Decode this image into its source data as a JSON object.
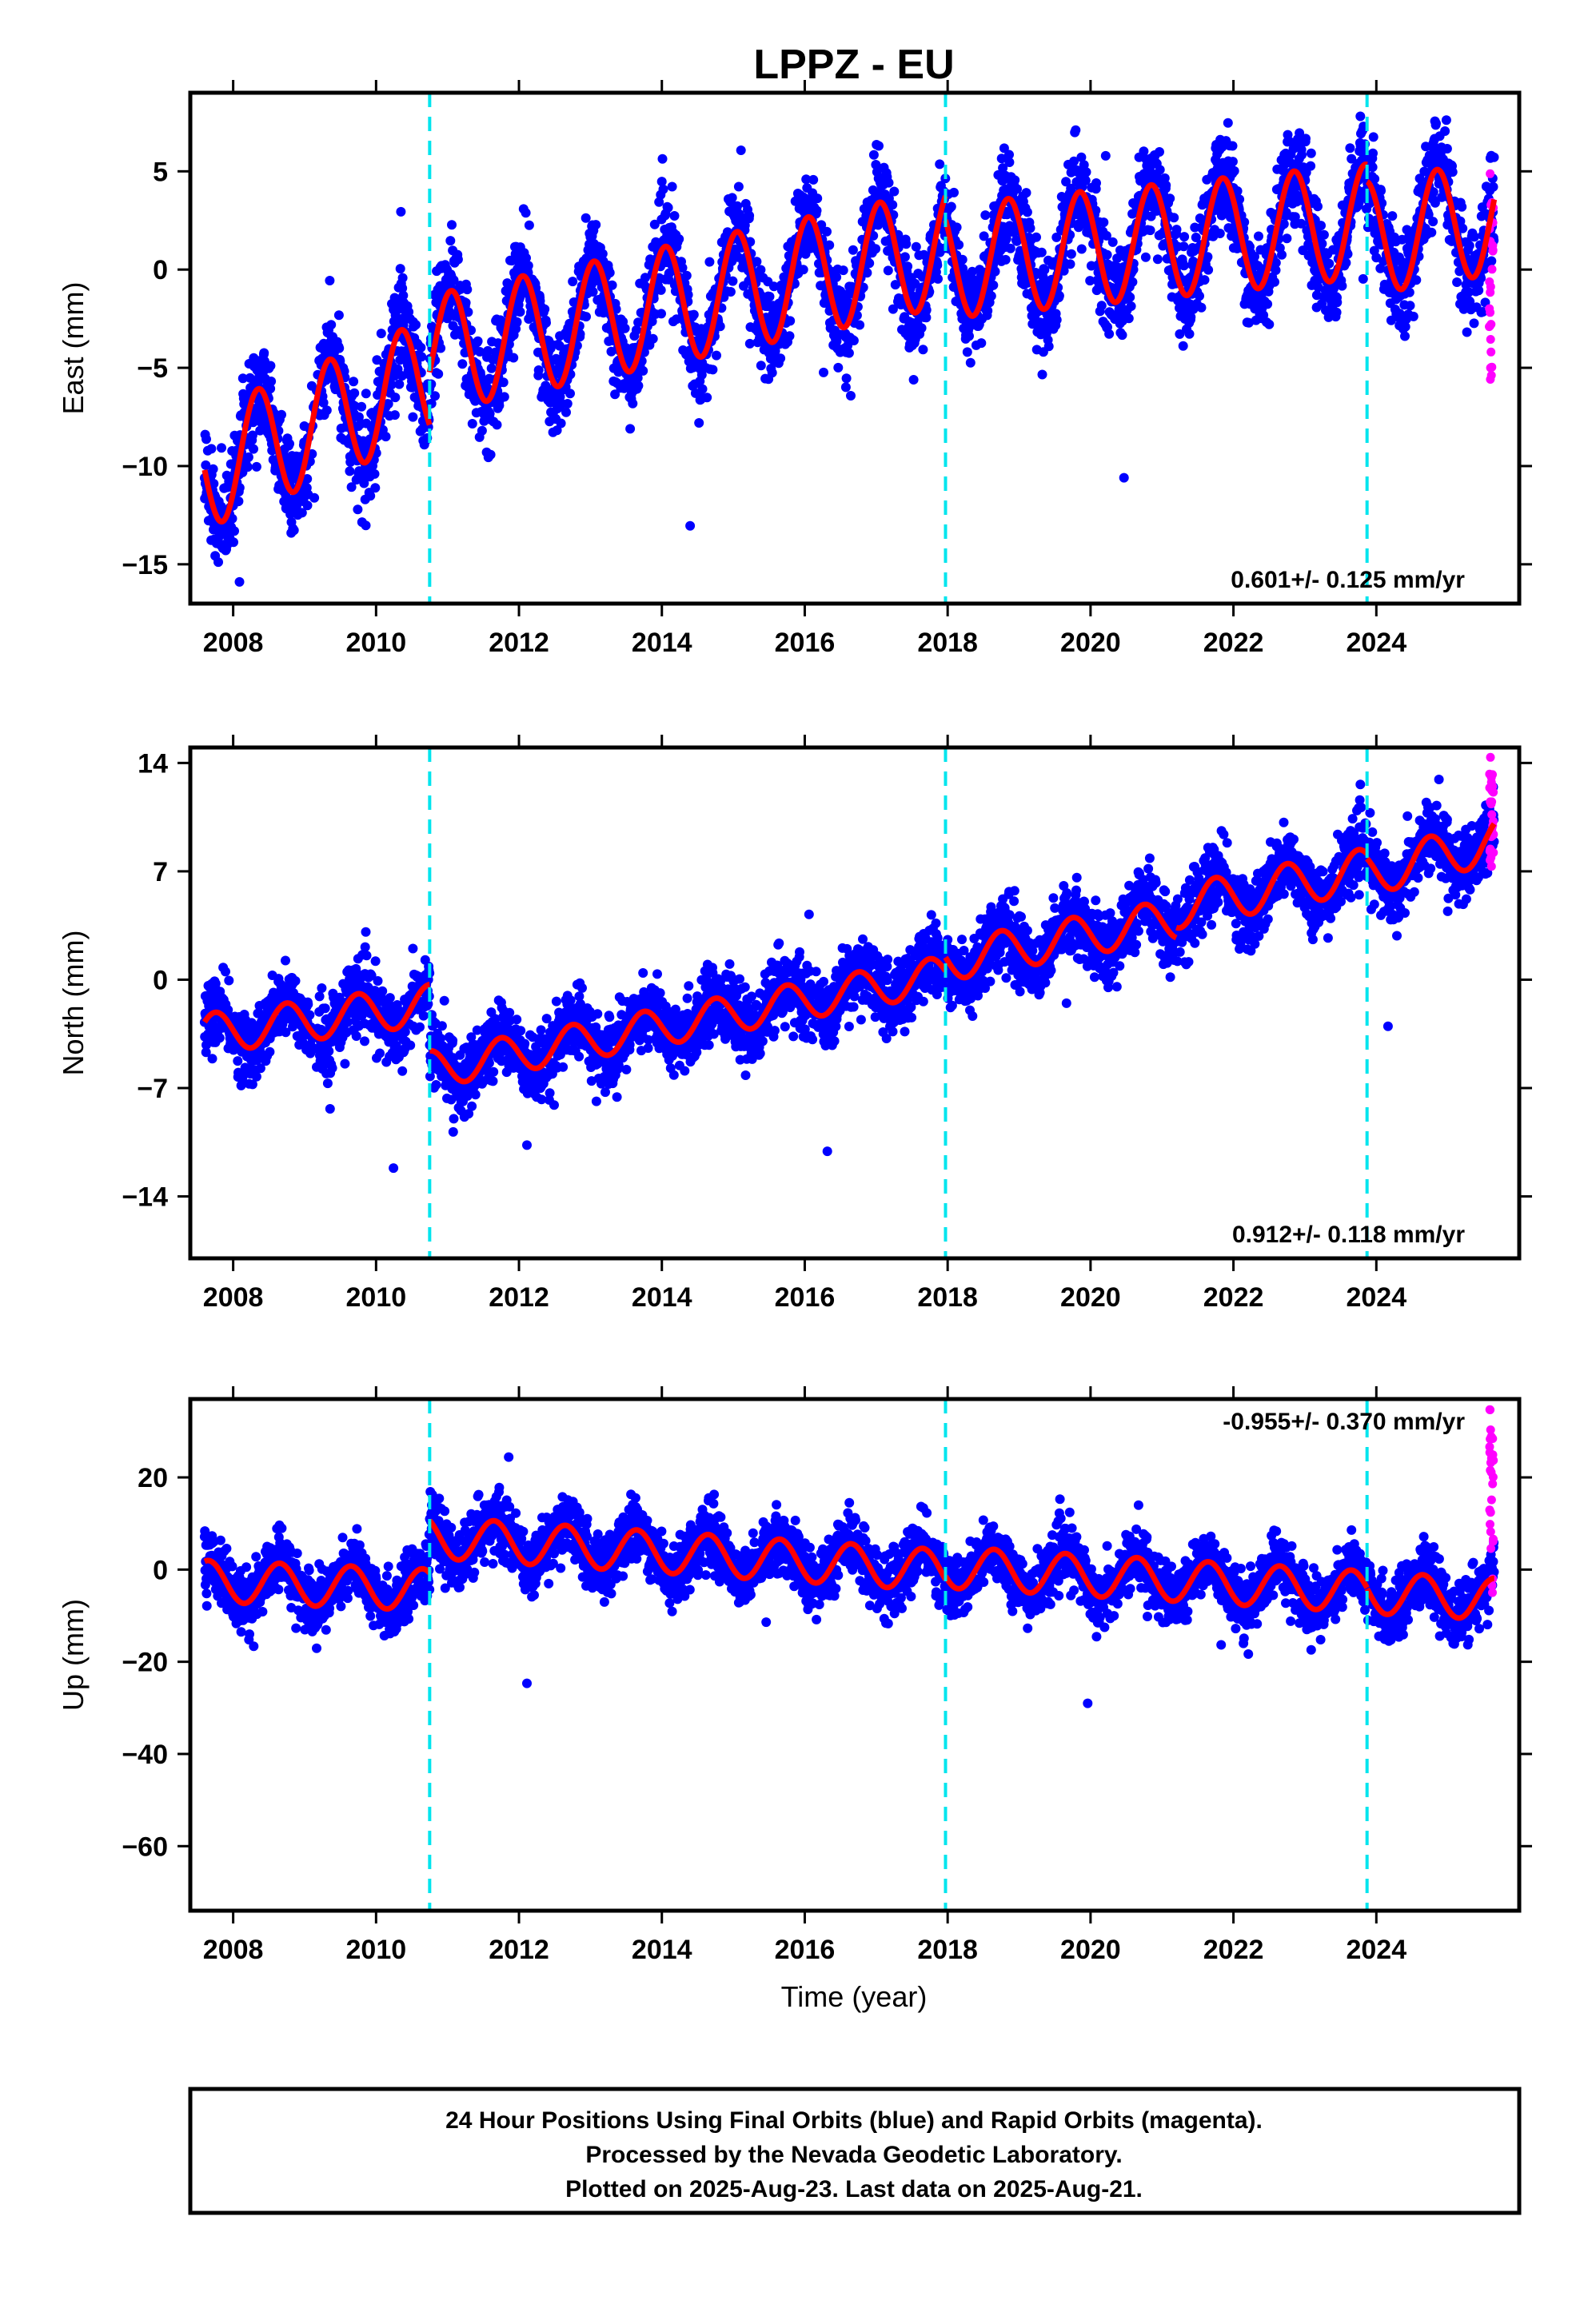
{
  "chart_data": {
    "title": "LPPZ - EU",
    "type": "scatter",
    "x_label": "Time (year)",
    "x_range": [
      2007.4,
      2026.0
    ],
    "x_ticks": [
      2008,
      2010,
      2012,
      2014,
      2016,
      2018,
      2020,
      2022,
      2024
    ],
    "equipment_changes": [
      2010.75,
      2017.97,
      2023.87
    ],
    "series_legend": {
      "final_orbits": "blue",
      "rapid_orbits": "magenta",
      "model_fit": "red"
    },
    "panels": [
      {
        "id": "east",
        "ylabel": "East (mm)",
        "ylim": [
          -17,
          9
        ],
        "yticks": [
          -15,
          -10,
          -5,
          0,
          5
        ],
        "rate": "0.601+/- 0.125 mm/yr",
        "fit_segments": [
          {
            "from": 2007.6,
            "to": 2010.75,
            "offset": -10.2,
            "trend": 1.5,
            "amp": 3.0,
            "phase": -0.1
          },
          {
            "from": 2010.75,
            "to": 2017.97,
            "offset": -4.3,
            "trend": 0.75,
            "amp": 3.0,
            "phase": 0.2
          },
          {
            "from": 2017.97,
            "to": 2023.87,
            "offset": 0.4,
            "trend": 0.35,
            "amp": 2.9,
            "phase": 0.4
          },
          {
            "from": 2023.87,
            "to": 2025.65,
            "offset": 1.6,
            "trend": 0.6,
            "amp": 2.9,
            "phase": 0.4
          }
        ],
        "scatter_sd": 1.2,
        "rapid_range": [
          -6,
          5
        ]
      },
      {
        "id": "north",
        "ylabel": "North (mm)",
        "ylim": [
          -18,
          15
        ],
        "yticks": [
          -14,
          -7,
          0,
          7,
          14
        ],
        "rate": "0.912+/- 0.118 mm/yr",
        "fit_segments": [
          {
            "from": 2007.6,
            "to": 2010.75,
            "offset": -3.5,
            "trend": 0.6,
            "amp": 1.3,
            "phase": 0.5
          },
          {
            "from": 2010.75,
            "to": 2017.97,
            "offset": -5.8,
            "trend": 0.85,
            "amp": 1.2,
            "phase": 0.5
          },
          {
            "from": 2017.97,
            "to": 2021.2,
            "offset": 1.2,
            "trend": 0.85,
            "amp": 1.3,
            "phase": 0.5
          },
          {
            "from": 2021.2,
            "to": 2023.87,
            "offset": 4.7,
            "trend": 0.9,
            "amp": 1.4,
            "phase": 0.5
          },
          {
            "from": 2023.87,
            "to": 2025.65,
            "offset": 6.8,
            "trend": 1.2,
            "amp": 1.4,
            "phase": 0.5
          }
        ],
        "scatter_sd": 1.1,
        "rapid_range": [
          7,
          14.5
        ]
      },
      {
        "id": "up",
        "ylabel": "Up (mm)",
        "ylim": [
          -74,
          37
        ],
        "yticks": [
          -60,
          -40,
          -20,
          0,
          20
        ],
        "rate": "-0.955+/- 0.370 mm/yr",
        "fit_segments": [
          {
            "from": 2007.6,
            "to": 2010.75,
            "offset": -2.5,
            "trend": -0.6,
            "amp": 4.5,
            "phase": 0.6
          },
          {
            "from": 2010.75,
            "to": 2017.97,
            "offset": 7.0,
            "trend": -1.0,
            "amp": 4.5,
            "phase": 0.6
          },
          {
            "from": 2017.97,
            "to": 2023.87,
            "offset": 0.5,
            "trend": -0.9,
            "amp": 4.5,
            "phase": 0.6
          },
          {
            "from": 2023.87,
            "to": 2025.65,
            "offset": -5.0,
            "trend": -0.8,
            "amp": 4.5,
            "phase": 0.6
          }
        ],
        "scatter_sd": 3.2,
        "rapid_range": [
          -5,
          35
        ]
      }
    ]
  },
  "caption": {
    "line1": "24 Hour Positions Using Final Orbits (blue) and Rapid Orbits (magenta).",
    "line2": "Processed by the Nevada Geodetic Laboratory.",
    "line3": "Plotted on 2025-Aug-23. Last data on 2025-Aug-21."
  },
  "colors": {
    "final": "#0000ff",
    "rapid": "#ff00ff",
    "fit": "#ff0000",
    "event": "#00e5ee",
    "frame": "#000000"
  }
}
